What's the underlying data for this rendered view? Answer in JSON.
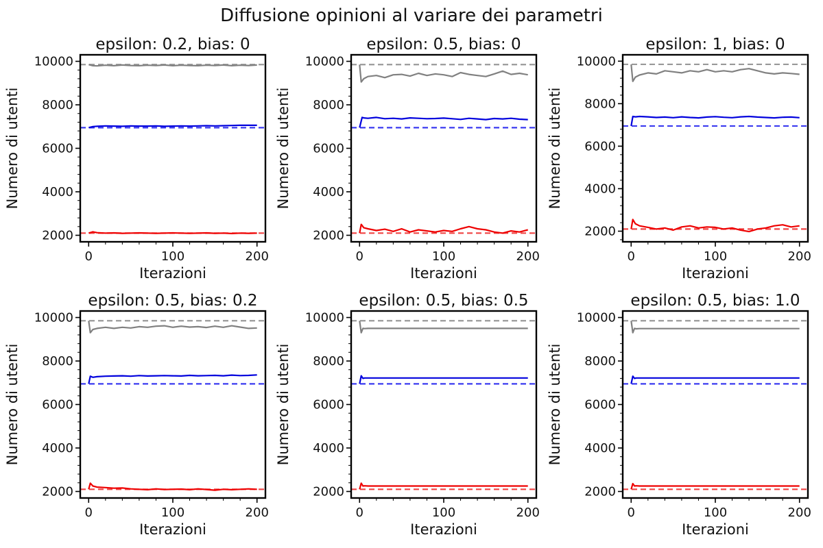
{
  "figure": {
    "title": "Diffusione opinioni al variare dei parametri"
  },
  "colors": {
    "grey": "#808080",
    "blue": "#0000dd",
    "red": "#ee0000",
    "grey_ref": "#999999",
    "blue_ref": "#3a3af0",
    "red_ref": "#f04444"
  },
  "chart_data": [
    {
      "type": "line",
      "title": "epsilon: 0.2, bias: 0",
      "xlabel": "Iterazioni",
      "ylabel": "Numero di utenti",
      "xlim": [
        -10,
        210
      ],
      "ylim": [
        1700,
        10300
      ],
      "xticks": [
        0,
        100,
        200
      ],
      "yticks": [
        2000,
        4000,
        6000,
        8000,
        10000
      ],
      "reference_lines": [
        {
          "name": "grey",
          "y": 9850
        },
        {
          "name": "blue",
          "y": 6950
        },
        {
          "name": "red",
          "y": 2100
        }
      ],
      "series": [
        {
          "color_key": "grey",
          "x": [
            0,
            5,
            10,
            20,
            30,
            40,
            50,
            60,
            70,
            80,
            90,
            100,
            110,
            120,
            130,
            140,
            150,
            160,
            170,
            180,
            190,
            200
          ],
          "values": [
            9850,
            9800,
            9790,
            9820,
            9800,
            9830,
            9810,
            9800,
            9820,
            9810,
            9830,
            9800,
            9820,
            9810,
            9800,
            9820,
            9810,
            9830,
            9800,
            9820,
            9810,
            9830
          ]
        },
        {
          "color_key": "blue",
          "x": [
            0,
            5,
            10,
            20,
            30,
            40,
            50,
            60,
            70,
            80,
            90,
            100,
            110,
            120,
            130,
            140,
            150,
            160,
            170,
            180,
            190,
            200
          ],
          "values": [
            6950,
            7000,
            7010,
            7030,
            7020,
            7010,
            7030,
            7020,
            7020,
            7030,
            7010,
            7020,
            7030,
            7020,
            7030,
            7040,
            7030,
            7040,
            7050,
            7060,
            7060,
            7060
          ]
        },
        {
          "color_key": "red",
          "x": [
            0,
            5,
            10,
            20,
            30,
            40,
            50,
            60,
            70,
            80,
            90,
            100,
            110,
            120,
            130,
            140,
            150,
            160,
            170,
            180,
            190,
            200
          ],
          "values": [
            2100,
            2160,
            2120,
            2100,
            2110,
            2090,
            2100,
            2110,
            2100,
            2090,
            2100,
            2110,
            2100,
            2090,
            2100,
            2110,
            2090,
            2100,
            2080,
            2100,
            2090,
            2100
          ]
        }
      ]
    },
    {
      "type": "line",
      "title": "epsilon: 0.5, bias: 0",
      "xlabel": "Iterazioni",
      "ylabel": "Numero di utenti",
      "xlim": [
        -10,
        210
      ],
      "ylim": [
        1700,
        10300
      ],
      "xticks": [
        0,
        100,
        200
      ],
      "yticks": [
        2000,
        4000,
        6000,
        8000,
        10000
      ],
      "reference_lines": [
        {
          "name": "grey",
          "y": 9850
        },
        {
          "name": "blue",
          "y": 6950
        },
        {
          "name": "red",
          "y": 2100
        }
      ],
      "series": [
        {
          "color_key": "grey",
          "x": [
            0,
            2,
            5,
            10,
            20,
            30,
            40,
            50,
            60,
            70,
            80,
            90,
            100,
            110,
            120,
            130,
            140,
            150,
            160,
            170,
            180,
            190,
            200
          ],
          "values": [
            9850,
            9050,
            9200,
            9300,
            9350,
            9250,
            9380,
            9400,
            9320,
            9450,
            9350,
            9420,
            9380,
            9300,
            9480,
            9400,
            9350,
            9300,
            9420,
            9550,
            9400,
            9450,
            9380
          ]
        },
        {
          "color_key": "blue",
          "x": [
            0,
            3,
            5,
            10,
            20,
            30,
            40,
            50,
            60,
            70,
            80,
            90,
            100,
            110,
            120,
            130,
            140,
            150,
            160,
            170,
            180,
            190,
            200
          ],
          "values": [
            6950,
            7420,
            7400,
            7380,
            7420,
            7360,
            7380,
            7350,
            7400,
            7380,
            7360,
            7370,
            7390,
            7360,
            7330,
            7380,
            7350,
            7320,
            7370,
            7350,
            7380,
            7340,
            7320
          ]
        },
        {
          "color_key": "red",
          "x": [
            0,
            2,
            5,
            10,
            20,
            30,
            40,
            50,
            60,
            70,
            80,
            90,
            100,
            110,
            120,
            130,
            140,
            150,
            160,
            170,
            180,
            190,
            200
          ],
          "values": [
            2100,
            2500,
            2350,
            2300,
            2220,
            2280,
            2180,
            2300,
            2150,
            2250,
            2200,
            2150,
            2220,
            2180,
            2300,
            2400,
            2300,
            2250,
            2150,
            2100,
            2200,
            2150,
            2250
          ]
        }
      ]
    },
    {
      "type": "line",
      "title": "epsilon: 1, bias: 0",
      "xlabel": "Iterazioni",
      "ylabel": "Numero di utenti",
      "xlim": [
        -10,
        210
      ],
      "ylim": [
        1500,
        10300
      ],
      "xticks": [
        0,
        100,
        200
      ],
      "yticks": [
        2000,
        4000,
        6000,
        8000,
        10000
      ],
      "reference_lines": [
        {
          "name": "grey",
          "y": 9850
        },
        {
          "name": "blue",
          "y": 6950
        },
        {
          "name": "red",
          "y": 2100
        }
      ],
      "series": [
        {
          "color_key": "grey",
          "x": [
            0,
            2,
            5,
            10,
            20,
            30,
            40,
            50,
            60,
            70,
            80,
            90,
            100,
            110,
            120,
            130,
            140,
            150,
            160,
            170,
            180,
            190,
            200
          ],
          "values": [
            9850,
            9050,
            9250,
            9350,
            9450,
            9400,
            9550,
            9500,
            9450,
            9550,
            9500,
            9600,
            9500,
            9550,
            9500,
            9600,
            9650,
            9550,
            9450,
            9400,
            9450,
            9420,
            9380
          ]
        },
        {
          "color_key": "blue",
          "x": [
            0,
            2,
            5,
            10,
            20,
            30,
            40,
            50,
            60,
            70,
            80,
            90,
            100,
            110,
            120,
            130,
            140,
            150,
            160,
            170,
            180,
            190,
            200
          ],
          "values": [
            6950,
            7400,
            7380,
            7400,
            7380,
            7350,
            7370,
            7340,
            7380,
            7350,
            7330,
            7370,
            7390,
            7360,
            7340,
            7380,
            7400,
            7370,
            7350,
            7330,
            7360,
            7370,
            7340
          ]
        },
        {
          "color_key": "red",
          "x": [
            0,
            2,
            5,
            10,
            20,
            30,
            40,
            50,
            60,
            70,
            80,
            90,
            100,
            110,
            120,
            130,
            140,
            150,
            160,
            170,
            180,
            190,
            200
          ],
          "values": [
            2100,
            2550,
            2350,
            2250,
            2180,
            2100,
            2150,
            2050,
            2200,
            2250,
            2150,
            2200,
            2180,
            2100,
            2150,
            2050,
            1980,
            2100,
            2150,
            2250,
            2300,
            2200,
            2250
          ]
        }
      ]
    },
    {
      "type": "line",
      "title": "epsilon: 0.5, bias: 0.2",
      "xlabel": "Iterazioni",
      "ylabel": "Numero di utenti",
      "xlim": [
        -10,
        210
      ],
      "ylim": [
        1700,
        10300
      ],
      "xticks": [
        0,
        100,
        200
      ],
      "yticks": [
        2000,
        4000,
        6000,
        8000,
        10000
      ],
      "reference_lines": [
        {
          "name": "grey",
          "y": 9850
        },
        {
          "name": "blue",
          "y": 6950
        },
        {
          "name": "red",
          "y": 2100
        }
      ],
      "series": [
        {
          "color_key": "grey",
          "x": [
            0,
            2,
            5,
            10,
            20,
            30,
            40,
            50,
            60,
            70,
            80,
            90,
            100,
            110,
            120,
            130,
            140,
            150,
            160,
            170,
            180,
            190,
            200
          ],
          "values": [
            9850,
            9300,
            9450,
            9500,
            9550,
            9500,
            9550,
            9520,
            9580,
            9550,
            9600,
            9620,
            9550,
            9600,
            9560,
            9580,
            9540,
            9600,
            9550,
            9620,
            9560,
            9500,
            9520
          ]
        },
        {
          "color_key": "blue",
          "x": [
            0,
            2,
            5,
            10,
            20,
            30,
            40,
            50,
            60,
            70,
            80,
            90,
            100,
            110,
            120,
            130,
            140,
            150,
            160,
            170,
            180,
            190,
            200
          ],
          "values": [
            6950,
            7300,
            7250,
            7280,
            7300,
            7310,
            7320,
            7300,
            7330,
            7310,
            7320,
            7330,
            7320,
            7310,
            7340,
            7320,
            7330,
            7340,
            7320,
            7350,
            7330,
            7340,
            7360
          ]
        },
        {
          "color_key": "red",
          "x": [
            0,
            2,
            5,
            10,
            20,
            30,
            40,
            50,
            60,
            70,
            80,
            90,
            100,
            110,
            120,
            130,
            140,
            150,
            160,
            170,
            180,
            190,
            200
          ],
          "values": [
            2100,
            2380,
            2250,
            2200,
            2180,
            2150,
            2160,
            2120,
            2100,
            2080,
            2120,
            2090,
            2100,
            2110,
            2080,
            2120,
            2090,
            2060,
            2100,
            2080,
            2100,
            2120,
            2100
          ]
        }
      ]
    },
    {
      "type": "line",
      "title": "epsilon: 0.5, bias: 0.5",
      "xlabel": "Iterazioni",
      "ylabel": "Numero di utenti",
      "xlim": [
        -10,
        210
      ],
      "ylim": [
        1700,
        10300
      ],
      "xticks": [
        0,
        100,
        200
      ],
      "yticks": [
        2000,
        4000,
        6000,
        8000,
        10000
      ],
      "reference_lines": [
        {
          "name": "grey",
          "y": 9850
        },
        {
          "name": "blue",
          "y": 6950
        },
        {
          "name": "red",
          "y": 2100
        }
      ],
      "series": [
        {
          "color_key": "grey",
          "x": [
            0,
            2,
            4,
            6,
            10,
            200
          ],
          "values": [
            9850,
            9300,
            9500,
            9490,
            9500,
            9500
          ]
        },
        {
          "color_key": "blue",
          "x": [
            0,
            2,
            4,
            6,
            10,
            200
          ],
          "values": [
            6950,
            7320,
            7200,
            7220,
            7220,
            7220
          ]
        },
        {
          "color_key": "red",
          "x": [
            0,
            2,
            4,
            6,
            10,
            200
          ],
          "values": [
            2100,
            2380,
            2250,
            2260,
            2250,
            2250
          ]
        }
      ]
    },
    {
      "type": "line",
      "title": "epsilon: 0.5, bias: 1.0",
      "xlabel": "Iterazioni",
      "ylabel": "Numero di utenti",
      "xlim": [
        -10,
        210
      ],
      "ylim": [
        1700,
        10300
      ],
      "xticks": [
        0,
        100,
        200
      ],
      "yticks": [
        2000,
        4000,
        6000,
        8000,
        10000
      ],
      "reference_lines": [
        {
          "name": "grey",
          "y": 9850
        },
        {
          "name": "blue",
          "y": 6950
        },
        {
          "name": "red",
          "y": 2100
        }
      ],
      "series": [
        {
          "color_key": "grey",
          "x": [
            0,
            2,
            4,
            6,
            10,
            200
          ],
          "values": [
            9850,
            9300,
            9500,
            9480,
            9490,
            9490
          ]
        },
        {
          "color_key": "blue",
          "x": [
            0,
            2,
            4,
            6,
            10,
            200
          ],
          "values": [
            6950,
            7300,
            7200,
            7220,
            7220,
            7220
          ]
        },
        {
          "color_key": "red",
          "x": [
            0,
            2,
            4,
            6,
            10,
            200
          ],
          "values": [
            2100,
            2360,
            2250,
            2260,
            2250,
            2250
          ]
        }
      ]
    }
  ]
}
